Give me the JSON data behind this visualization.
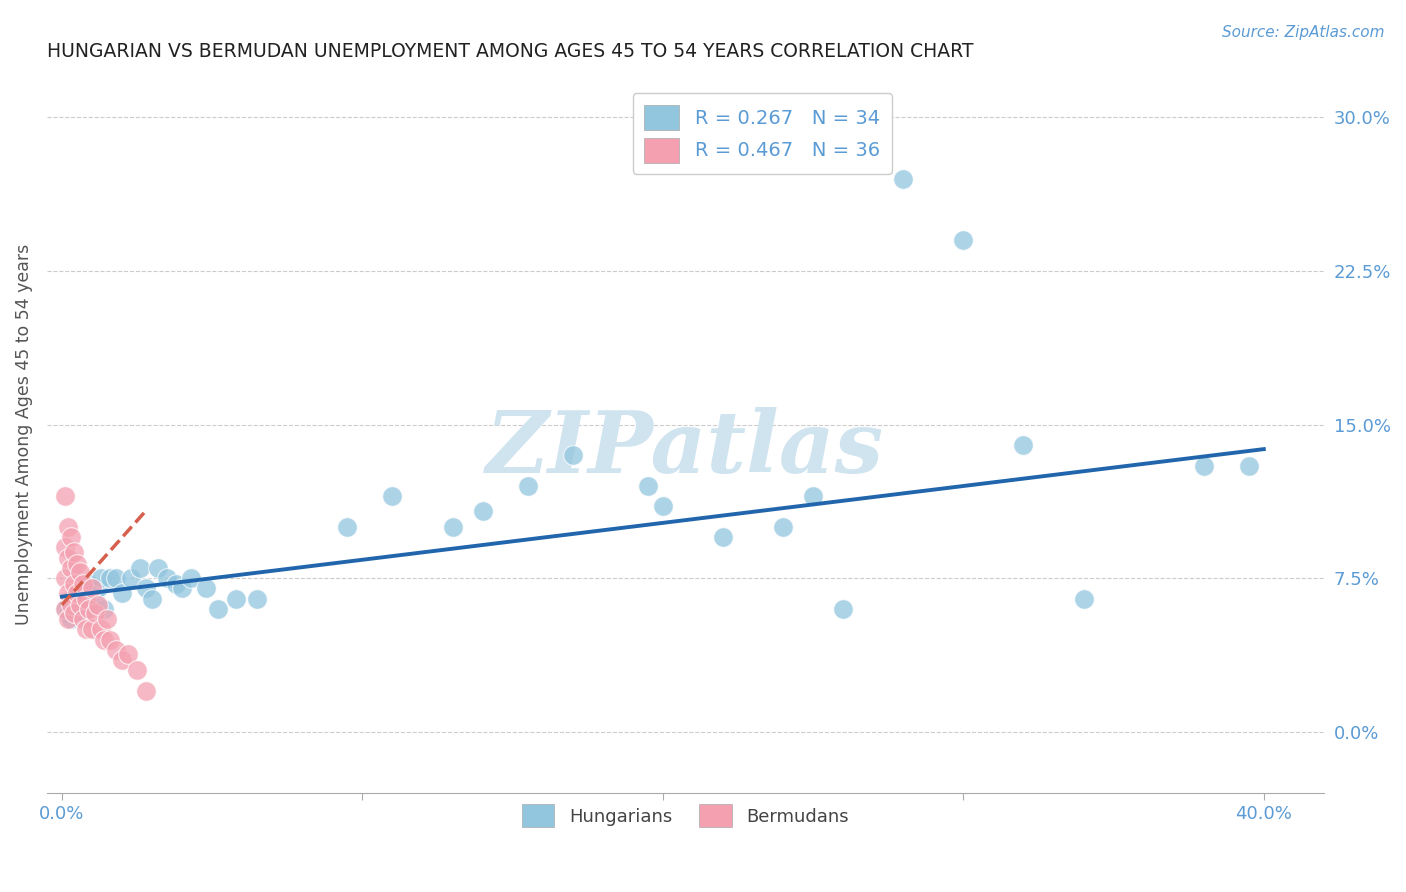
{
  "title": "HUNGARIAN VS BERMUDAN UNEMPLOYMENT AMONG AGES 45 TO 54 YEARS CORRELATION CHART",
  "source": "Source: ZipAtlas.com",
  "ylabel": "Unemployment Among Ages 45 to 54 years",
  "xlabel_vals": [
    0.0,
    0.1,
    0.2,
    0.3,
    0.4
  ],
  "xlabel_ticks_shown": [
    "0.0%",
    "",
    "",
    "",
    "40.0%"
  ],
  "ylabel_vals": [
    0.0,
    0.075,
    0.15,
    0.225,
    0.3
  ],
  "ylabel_ticks": [
    "0.0%",
    "7.5%",
    "15.0%",
    "22.5%",
    "30.0%"
  ],
  "xlim": [
    -0.005,
    0.42
  ],
  "ylim": [
    -0.03,
    0.32
  ],
  "hungarian_color": "#92c5de",
  "bermudan_color": "#f4a0b0",
  "hungarian_line_color": "#2166ac",
  "bermudan_line_color": "#d6604d",
  "watermark_color": "#d0e4f0",
  "grid_color": "#cccccc",
  "tick_color": "#5b9bd5",
  "title_color": "#222222",
  "ylabel_color": "#555555",
  "source_color": "#5b9bd5",
  "hungarian_scatter_x": [
    0.001,
    0.002,
    0.003,
    0.003,
    0.004,
    0.005,
    0.005,
    0.006,
    0.007,
    0.008,
    0.009,
    0.01,
    0.011,
    0.012,
    0.013,
    0.014,
    0.016,
    0.018,
    0.02,
    0.023,
    0.026,
    0.028,
    0.03,
    0.032,
    0.035,
    0.038,
    0.04,
    0.043,
    0.048,
    0.052,
    0.058,
    0.065,
    0.14,
    0.195,
    0.25,
    0.32,
    0.38
  ],
  "hungarian_scatter_y": [
    0.06,
    0.058,
    0.055,
    0.065,
    0.062,
    0.058,
    0.068,
    0.062,
    0.065,
    0.06,
    0.072,
    0.068,
    0.065,
    0.07,
    0.075,
    0.06,
    0.075,
    0.075,
    0.068,
    0.075,
    0.08,
    0.07,
    0.065,
    0.08,
    0.075,
    0.072,
    0.07,
    0.075,
    0.07,
    0.06,
    0.065,
    0.065,
    0.108,
    0.12,
    0.115,
    0.14,
    0.13
  ],
  "hungarian_scatter2_x": [
    0.095,
    0.11,
    0.13,
    0.155,
    0.17,
    0.2,
    0.22,
    0.24,
    0.26,
    0.28,
    0.3,
    0.34,
    0.395
  ],
  "hungarian_scatter2_y": [
    0.1,
    0.115,
    0.1,
    0.12,
    0.135,
    0.11,
    0.095,
    0.1,
    0.06,
    0.27,
    0.24,
    0.065,
    0.13
  ],
  "bermudan_scatter_x": [
    0.001,
    0.001,
    0.001,
    0.001,
    0.002,
    0.002,
    0.002,
    0.002,
    0.003,
    0.003,
    0.003,
    0.004,
    0.004,
    0.004,
    0.005,
    0.005,
    0.006,
    0.006,
    0.007,
    0.007,
    0.008,
    0.008,
    0.009,
    0.01,
    0.01,
    0.011,
    0.012,
    0.013,
    0.014,
    0.015,
    0.016,
    0.018,
    0.02,
    0.022,
    0.025,
    0.028
  ],
  "bermudan_scatter_y": [
    0.115,
    0.09,
    0.075,
    0.06,
    0.1,
    0.085,
    0.068,
    0.055,
    0.095,
    0.08,
    0.062,
    0.088,
    0.072,
    0.058,
    0.082,
    0.068,
    0.078,
    0.062,
    0.072,
    0.055,
    0.065,
    0.05,
    0.06,
    0.07,
    0.05,
    0.058,
    0.062,
    0.05,
    0.045,
    0.055,
    0.045,
    0.04,
    0.035,
    0.038,
    0.03,
    0.02
  ],
  "hungarian_line": {
    "x0": 0.0,
    "y0": 0.066,
    "x1": 0.4,
    "y1": 0.138
  },
  "bermudan_line": {
    "x0": 0.0,
    "y0": 0.062,
    "x1": 0.028,
    "y1": 0.108
  }
}
